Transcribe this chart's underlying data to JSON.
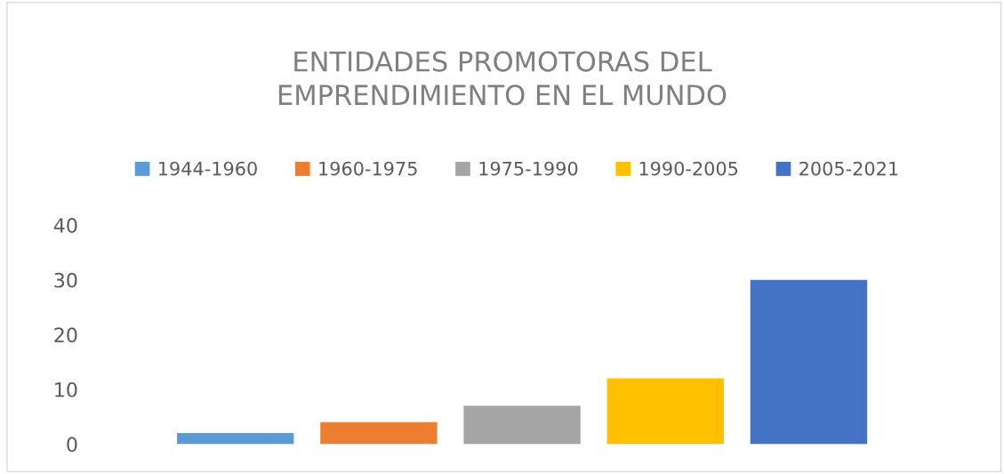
{
  "chart_data": {
    "type": "bar",
    "title": "ENTIDADES PROMOTORAS DEL\nEMPRENDIMIENTO EN EL MUNDO",
    "categories": [
      null
    ],
    "series": [
      {
        "name": "1944-1960",
        "color": "#5b9bd5",
        "values": [
          2
        ]
      },
      {
        "name": "1960-1975",
        "color": "#ed7d31",
        "values": [
          4
        ]
      },
      {
        "name": "1975-1990",
        "color": "#a5a5a5",
        "values": [
          7
        ]
      },
      {
        "name": "1990-2005",
        "color": "#ffc000",
        "values": [
          12
        ]
      },
      {
        "name": "2005-2021",
        "color": "#4472c4",
        "values": [
          30
        ]
      }
    ],
    "ylim": [
      0,
      40
    ],
    "yticks": [
      0,
      10,
      20,
      30,
      40
    ],
    "grid": false,
    "legend": "top"
  }
}
